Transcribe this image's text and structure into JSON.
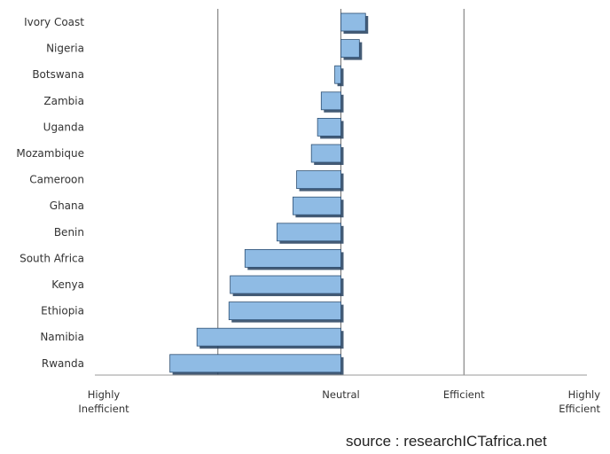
{
  "chart_data": {
    "type": "bar",
    "orientation": "horizontal",
    "title": "",
    "categories": [
      "Ivory Coast",
      "Nigeria",
      "Botswana",
      "Zambia",
      "Uganda",
      "Mozambique",
      "Cameroon",
      "Ghana",
      "Benin",
      "South Africa",
      "Kenya",
      "Ethiopia",
      "Namibia",
      "Rwanda"
    ],
    "values": [
      0.2,
      0.15,
      -0.05,
      -0.16,
      -0.19,
      -0.24,
      -0.36,
      -0.39,
      -0.52,
      -0.78,
      -0.9,
      -0.91,
      -1.17,
      -1.39
    ],
    "xlim": [
      -2,
      2
    ],
    "x_ticks": [
      {
        "value": -2,
        "label": "Highly Inefficient"
      },
      {
        "value": 0,
        "label": "Neutral"
      },
      {
        "value": 1,
        "label": "Efficient"
      },
      {
        "value": 2,
        "label": "Highly Efficient"
      }
    ],
    "gridlines_at": [
      -1,
      0,
      1
    ],
    "grid": true,
    "legend": "none",
    "bar_color": "#8fbbe4",
    "bar_border_color": "#2d4f73",
    "annotation": "source : researchICTafrica.net"
  }
}
